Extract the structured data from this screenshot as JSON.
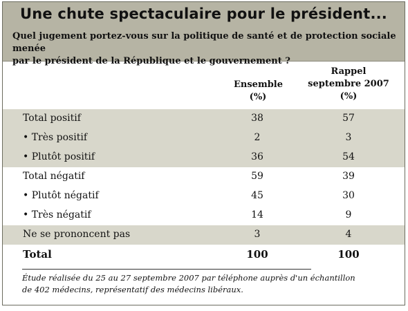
{
  "title": "Une chute spectaculaire pour le président...",
  "question_line1": "Quel jugement portez-vous sur la politique de santé et de protection sociale menée",
  "question_line2": "par le président de la République et le gouvernement ?",
  "columns": {
    "col1_line1": "Ensemble",
    "col1_line2": "(%)",
    "col2_line1": "Rappel",
    "col2_line2": "septembre 2007",
    "col2_line3": "(%)"
  },
  "rows": [
    {
      "label": "Total positif",
      "ensemble": "38",
      "rappel": "57"
    },
    {
      "label": "• Très positif",
      "ensemble": "2",
      "rappel": "3"
    },
    {
      "label": "• Plutôt positif",
      "ensemble": "36",
      "rappel": "54"
    },
    {
      "label": "Total négatif",
      "ensemble": "59",
      "rappel": "39"
    },
    {
      "label": "• Plutôt négatif",
      "ensemble": "45",
      "rappel": "30"
    },
    {
      "label": "• Très négatif",
      "ensemble": "14",
      "rappel": "9"
    },
    {
      "label": "Ne se prononcent pas",
      "ensemble": "3",
      "rappel": "4"
    },
    {
      "label": "Total",
      "ensemble": "100",
      "rappel": "100"
    }
  ],
  "footnote_line1": "Étude réalisée du 25 au 27 septembre 2007 par téléphone auprès d'un échantillon",
  "footnote_line2": "de 402 médecins, représentatif des médecins libéraux.",
  "colors": {
    "header_band": "#b6b4a4",
    "shaded_row": "#d8d7cb",
    "border": "#6b6b5e"
  }
}
